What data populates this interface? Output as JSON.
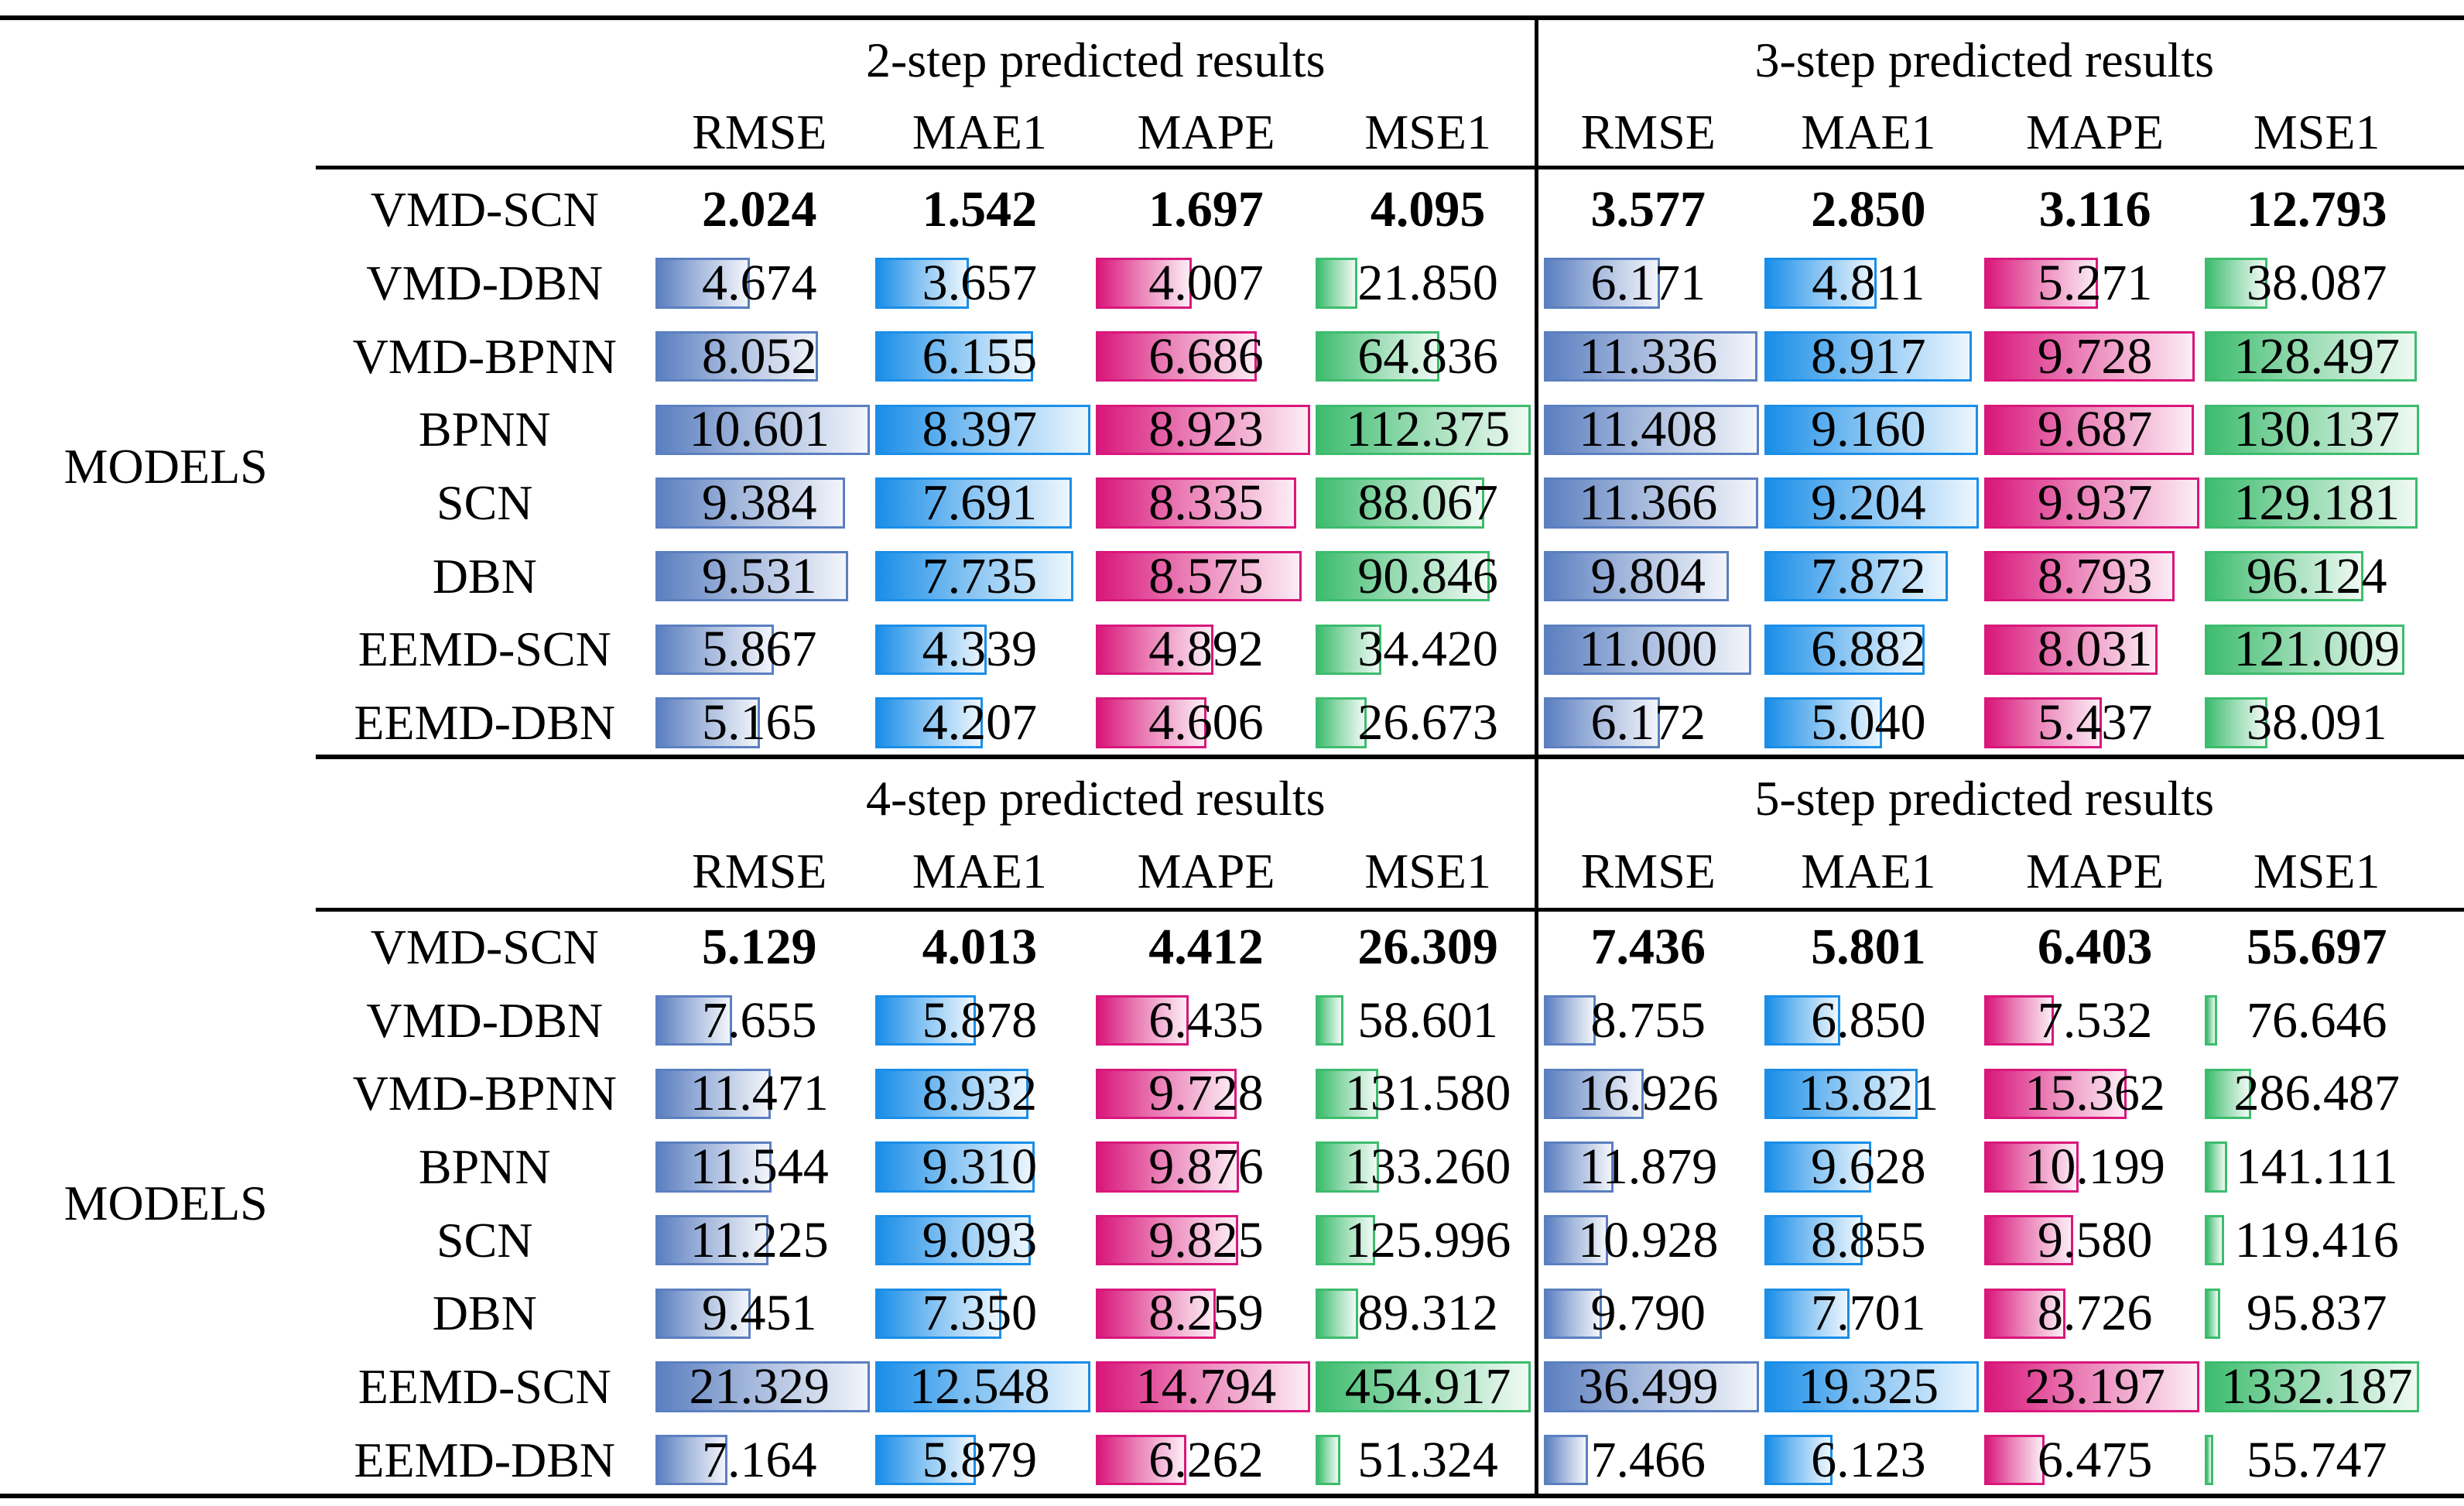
{
  "row_label": "MODELS",
  "metrics": [
    "RMSE",
    "MAE1",
    "MAPE",
    "MSE1"
  ],
  "models": [
    "VMD-SCN",
    "VMD-DBN",
    "VMD-BPNN",
    "BPNN",
    "SCN",
    "DBN",
    "EEMD-SCN",
    "EEMD-DBN"
  ],
  "bar_colors": [
    {
      "metric": "RMSE",
      "solid": "#5b7fc0",
      "edge": "#5b7fc0"
    },
    {
      "metric": "MAE1",
      "solid": "#1a8ee8",
      "edge": "#1a8ee8"
    },
    {
      "metric": "MAPE",
      "solid": "#d9177b",
      "edge": "#d9177b"
    },
    {
      "metric": "MSE1",
      "solid": "#3dbc6e",
      "edge": "#3dbc6e"
    }
  ],
  "chart_data": {
    "type": "table",
    "blocks": [
      {
        "title": "2-step predicted results",
        "columns": [
          "RMSE",
          "MAE1",
          "MAPE",
          "MSE1"
        ],
        "rows": [
          [
            "2.024",
            "1.542",
            "1.697",
            "4.095"
          ],
          [
            "4.674",
            "3.657",
            "4.007",
            "21.850"
          ],
          [
            "8.052",
            "6.155",
            "6.686",
            "64.836"
          ],
          [
            "10.601",
            "8.397",
            "8.923",
            "112.375"
          ],
          [
            "9.384",
            "7.691",
            "8.335",
            "88.067"
          ],
          [
            "9.531",
            "7.735",
            "8.575",
            "90.846"
          ],
          [
            "5.867",
            "4.339",
            "4.892",
            "34.420"
          ],
          [
            "5.165",
            "4.207",
            "4.606",
            "26.673"
          ]
        ]
      },
      {
        "title": "3-step predicted results",
        "columns": [
          "RMSE",
          "MAE1",
          "MAPE",
          "MSE1"
        ],
        "rows": [
          [
            "3.577",
            "2.850",
            "3.116",
            "12.793"
          ],
          [
            "6.171",
            "4.811",
            "5.271",
            "38.087"
          ],
          [
            "11.336",
            "8.917",
            "9.728",
            "128.497"
          ],
          [
            "11.408",
            "9.160",
            "9.687",
            "130.137"
          ],
          [
            "11.366",
            "9.204",
            "9.937",
            "129.181"
          ],
          [
            "9.804",
            "7.872",
            "8.793",
            "96.124"
          ],
          [
            "11.000",
            "6.882",
            "8.031",
            "121.009"
          ],
          [
            "6.172",
            "5.040",
            "5.437",
            "38.091"
          ]
        ]
      },
      {
        "title": "4-step predicted results",
        "columns": [
          "RMSE",
          "MAE1",
          "MAPE",
          "MSE1"
        ],
        "rows": [
          [
            "5.129",
            "4.013",
            "4.412",
            "26.309"
          ],
          [
            "7.655",
            "5.878",
            "6.435",
            "58.601"
          ],
          [
            "11.471",
            "8.932",
            "9.728",
            "131.580"
          ],
          [
            "11.544",
            "9.310",
            "9.876",
            "133.260"
          ],
          [
            "11.225",
            "9.093",
            "9.825",
            "125.996"
          ],
          [
            "9.451",
            "7.350",
            "8.259",
            "89.312"
          ],
          [
            "21.329",
            "12.548",
            "14.794",
            "454.917"
          ],
          [
            "7.164",
            "5.879",
            "6.262",
            "51.324"
          ]
        ]
      },
      {
        "title": "5-step predicted results",
        "columns": [
          "RMSE",
          "MAE1",
          "MAPE",
          "MSE1"
        ],
        "rows": [
          [
            "7.436",
            "5.801",
            "6.403",
            "55.697"
          ],
          [
            "8.755",
            "6.850",
            "7.532",
            "76.646"
          ],
          [
            "16.926",
            "13.821",
            "15.362",
            "286.487"
          ],
          [
            "11.879",
            "9.628",
            "10.199",
            "141.111"
          ],
          [
            "10.928",
            "8.855",
            "9.580",
            "119.416"
          ],
          [
            "9.790",
            "7.701",
            "8.726",
            "95.837"
          ],
          [
            "36.499",
            "19.325",
            "23.197",
            "1332.187"
          ],
          [
            "7.466",
            "6.123",
            "6.475",
            "55.747"
          ]
        ]
      }
    ],
    "bold_row": "VMD-SCN",
    "data_bars": "length proportional to value relative to column maximum within each block; best row (VMD-SCN) shown bold without bar"
  }
}
